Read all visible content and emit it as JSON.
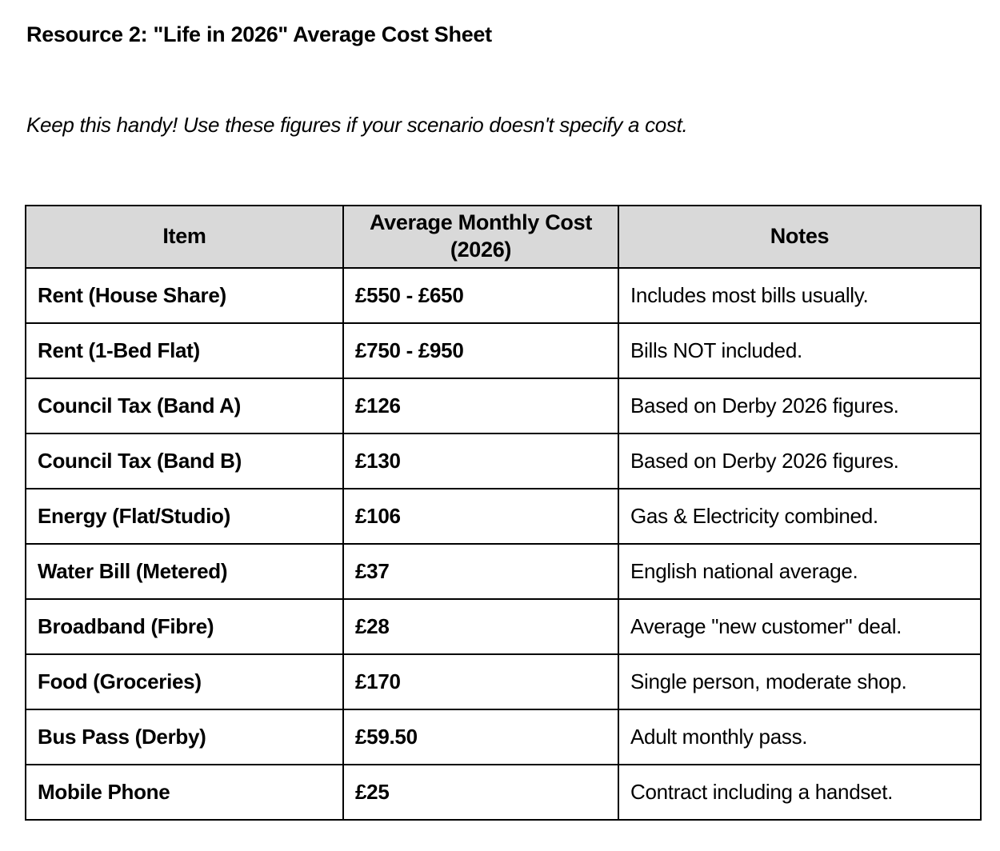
{
  "page": {
    "title": "Resource 2: \"Life in 2026\" Average Cost Sheet",
    "subtitle": "Keep this handy! Use these figures if your scenario doesn't specify a cost."
  },
  "table": {
    "header_bg": "#d9d9d9",
    "border_color": "#000000",
    "columns": [
      {
        "label": "Item"
      },
      {
        "label": "Average Monthly Cost (2026)"
      },
      {
        "label": "Notes"
      }
    ],
    "rows": [
      {
        "item": "Rent (House Share)",
        "cost": "£550 - £650",
        "notes": "Includes most bills usually."
      },
      {
        "item": "Rent (1-Bed Flat)",
        "cost": "£750 - £950",
        "notes": "Bills NOT included."
      },
      {
        "item": "Council Tax (Band A)",
        "cost": "£126",
        "notes": "Based on Derby 2026 figures."
      },
      {
        "item": "Council Tax (Band B)",
        "cost": "£130",
        "notes": "Based on Derby 2026 figures."
      },
      {
        "item": "Energy (Flat/Studio)",
        "cost": "£106",
        "notes": "Gas & Electricity combined."
      },
      {
        "item": "Water Bill (Metered)",
        "cost": "£37",
        "notes": "English national average."
      },
      {
        "item": "Broadband (Fibre)",
        "cost": "£28",
        "notes": "Average \"new customer\" deal."
      },
      {
        "item": "Food (Groceries)",
        "cost": "£170",
        "notes": "Single person, moderate shop."
      },
      {
        "item": "Bus Pass (Derby)",
        "cost": "£59.50",
        "notes": "Adult monthly pass."
      },
      {
        "item": "Mobile Phone",
        "cost": "£25",
        "notes": "Contract including a handset."
      }
    ]
  }
}
